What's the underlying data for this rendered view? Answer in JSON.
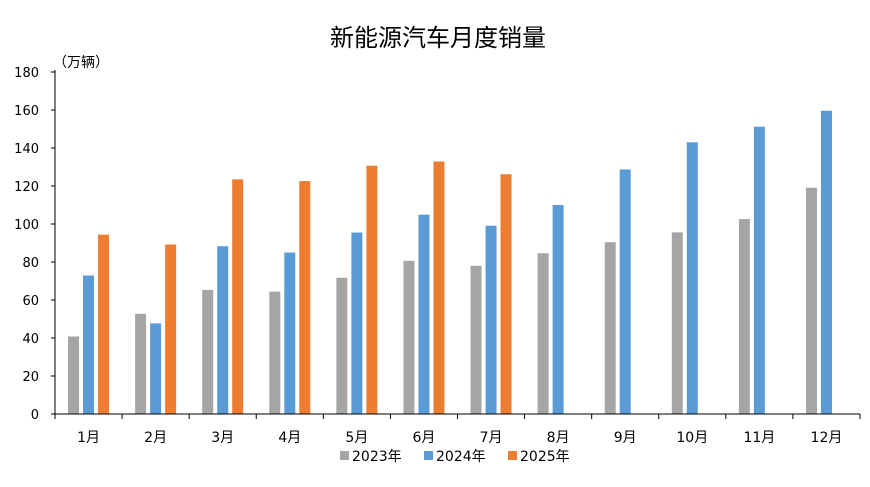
{
  "chart_data": {
    "type": "bar",
    "title": "新能源汽车月度销量",
    "unit_label": "（万辆）",
    "ylim": [
      0,
      180
    ],
    "yticks": [
      0,
      20,
      40,
      60,
      80,
      100,
      120,
      140,
      160,
      180
    ],
    "categories": [
      "1月",
      "2月",
      "3月",
      "4月",
      "5月",
      "6月",
      "7月",
      "8月",
      "9月",
      "10月",
      "11月",
      "12月"
    ],
    "series": [
      {
        "name": "2023年",
        "color": "#a5a5a5",
        "values": [
          40.8,
          52.7,
          65.3,
          64.4,
          71.7,
          80.6,
          78.0,
          84.6,
          90.4,
          95.6,
          102.6,
          119.1
        ]
      },
      {
        "name": "2024年",
        "color": "#5b9bd5",
        "values": [
          72.9,
          47.7,
          88.3,
          85.0,
          95.5,
          104.9,
          99.1,
          110.0,
          128.7,
          143.0,
          151.2,
          159.6
        ]
      },
      {
        "name": "2025年",
        "color": "#ed7d31",
        "values": [
          94.4,
          89.2,
          123.5,
          122.6,
          130.7,
          132.9,
          126.2,
          null,
          null,
          null,
          null,
          null
        ]
      }
    ],
    "grid": false,
    "legend": "bottom"
  }
}
